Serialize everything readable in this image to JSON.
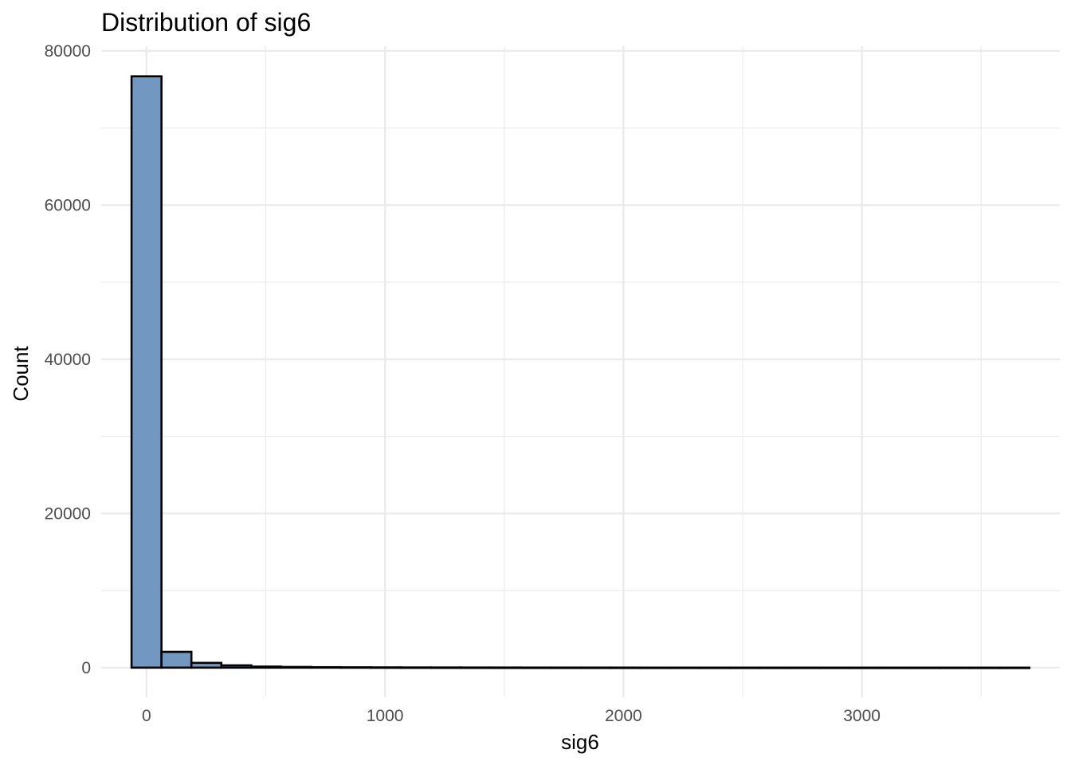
{
  "chart_data": {
    "type": "bar",
    "title": "Distribution of sig6",
    "xlabel": "sig6",
    "ylabel": "Count",
    "xlim": [
      -190,
      3830
    ],
    "ylim": [
      -3840,
      80600
    ],
    "x_ticks": [
      0,
      1000,
      2000,
      3000
    ],
    "x_tick_labels": [
      "0",
      "1000",
      "2000",
      "3000"
    ],
    "x_minor_ticks": [
      500,
      1500,
      2500,
      3500
    ],
    "y_ticks": [
      0,
      20000,
      40000,
      60000,
      80000
    ],
    "y_tick_labels": [
      "0",
      "20000",
      "40000",
      "60000",
      "80000"
    ],
    "y_minor_ticks": [
      10000,
      30000,
      50000,
      70000
    ],
    "bin_width": 125.5,
    "bin_start": -62.75,
    "values": [
      76700,
      2050,
      620,
      300,
      140,
      90,
      60,
      45,
      35,
      28,
      22,
      18,
      15,
      12,
      10,
      9,
      8,
      7,
      6,
      5,
      5,
      4,
      4,
      3,
      3,
      3,
      2,
      2,
      2,
      1
    ],
    "fill_color": "#7298c1",
    "outline_color": "#000000",
    "grid": true,
    "legend": "none"
  }
}
